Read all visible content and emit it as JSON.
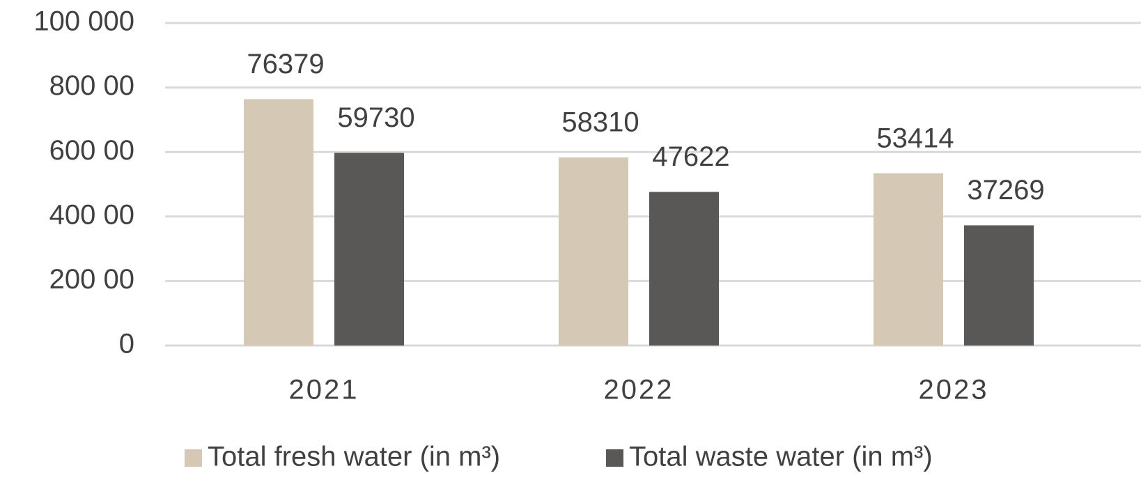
{
  "chart_data": {
    "type": "bar",
    "categories": [
      "2021",
      "2022",
      "2023"
    ],
    "series": [
      {
        "name": "Total fresh water (in m³)",
        "color": "#d5c8b5",
        "values": [
          76379,
          58310,
          53414
        ]
      },
      {
        "name": "Total waste water (in m³)",
        "color": "#595856",
        "values": [
          59730,
          47622,
          37269
        ]
      }
    ],
    "ylim": [
      0,
      100000
    ],
    "yticks": [
      0,
      {
        "value": 20000,
        "label": "200 00"
      },
      {
        "value": 40000,
        "label": "400 00"
      },
      {
        "value": 60000,
        "label": "600 00"
      },
      {
        "value": 80000,
        "label": "800 00"
      },
      {
        "value": 100000,
        "label": "100 000"
      }
    ],
    "grid": true,
    "legend": "bottom"
  }
}
